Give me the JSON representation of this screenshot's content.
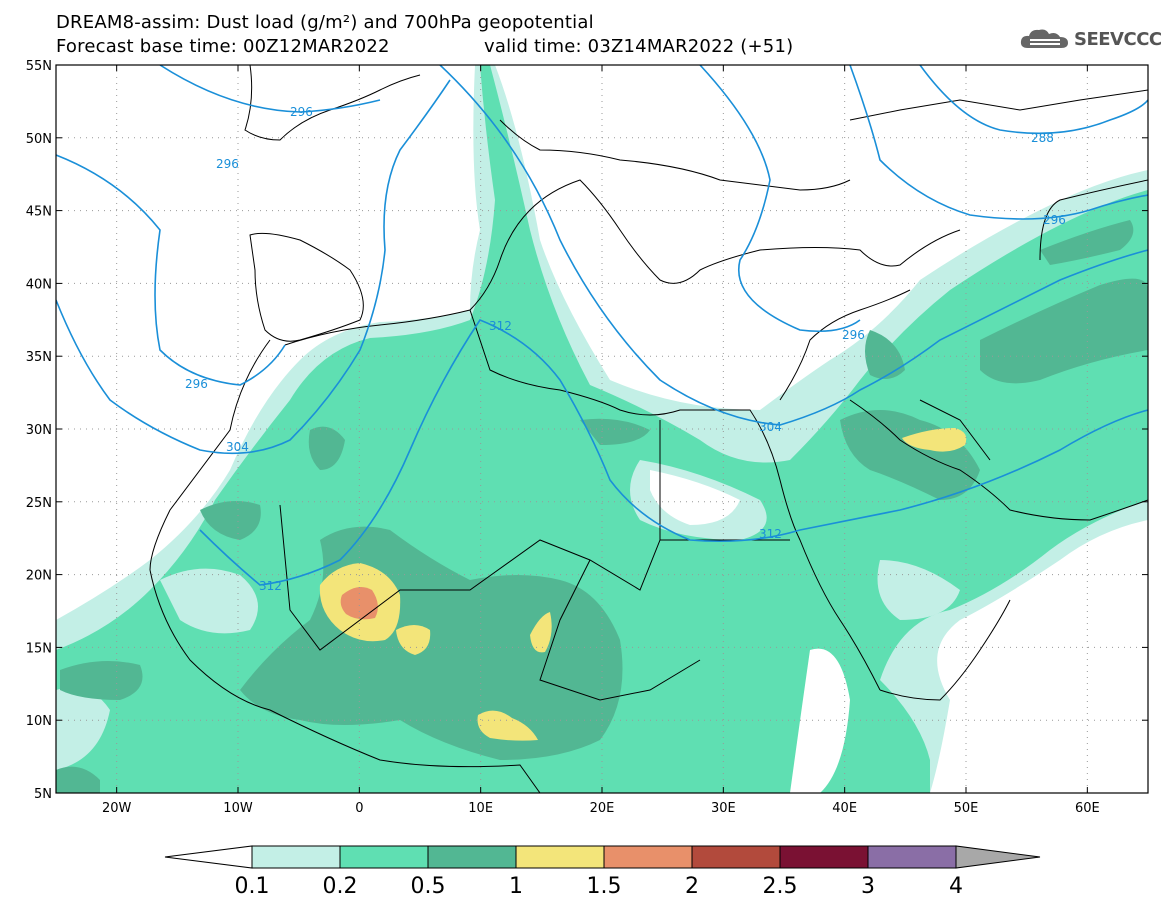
{
  "header": {
    "title_line1": "DREAM8-assim: Dust load (g/m²) and 700hPa geopotential",
    "title_line2_base": "Forecast base time: 00Z12MAR2022",
    "title_line2_valid": "valid time: 03Z14MAR2022 (+51)",
    "logo_text": "SEEVCCC",
    "logo_icon": "cloud-icon"
  },
  "map": {
    "lon_range": [
      -25,
      65
    ],
    "lat_range": [
      5,
      55
    ],
    "lon_ticks": [
      {
        "value": -20,
        "label": "20W"
      },
      {
        "value": -10,
        "label": "10W"
      },
      {
        "value": 0,
        "label": "0"
      },
      {
        "value": 10,
        "label": "10E"
      },
      {
        "value": 20,
        "label": "20E"
      },
      {
        "value": 30,
        "label": "30E"
      },
      {
        "value": 40,
        "label": "40E"
      },
      {
        "value": 50,
        "label": "50E"
      },
      {
        "value": 60,
        "label": "60E"
      }
    ],
    "lat_ticks": [
      {
        "value": 55,
        "label": "55N"
      },
      {
        "value": 50,
        "label": "50N"
      },
      {
        "value": 45,
        "label": "45N"
      },
      {
        "value": 40,
        "label": "40N"
      },
      {
        "value": 35,
        "label": "35N"
      },
      {
        "value": 30,
        "label": "30N"
      },
      {
        "value": 25,
        "label": "25N"
      },
      {
        "value": 20,
        "label": "20N"
      },
      {
        "value": 15,
        "label": "15N"
      },
      {
        "value": 10,
        "label": "10N"
      },
      {
        "value": 5,
        "label": "5N"
      }
    ],
    "contour_labels": [
      "296",
      "296",
      "296",
      "304",
      "312",
      "312",
      "312",
      "304",
      "296",
      "296",
      "288"
    ],
    "contour_color": "#1a8fd8"
  },
  "colorbar": {
    "labels": [
      "0.1",
      "0.2",
      "0.5",
      "1",
      "1.5",
      "2",
      "2.5",
      "3",
      "4"
    ],
    "colors": [
      "#c3efe6",
      "#5fdfb2",
      "#52b793",
      "#f3e57a",
      "#e8906a",
      "#b24a3c",
      "#7a1133",
      "#8a6ea6"
    ]
  }
}
